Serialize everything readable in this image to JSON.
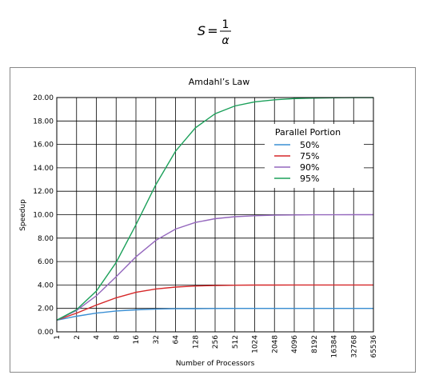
{
  "formula": {
    "lhs": "S",
    "equals": "=",
    "numerator": "1",
    "denominator": "α"
  },
  "chart_data": {
    "type": "line",
    "title": "Amdahl’s Law",
    "xlabel": "Number of Processors",
    "ylabel": "Speedup",
    "x_scale": "log2",
    "categories": [
      "1",
      "2",
      "4",
      "8",
      "16",
      "32",
      "64",
      "128",
      "256",
      "512",
      "1024",
      "2048",
      "4096",
      "8192",
      "16384",
      "32768",
      "65536"
    ],
    "x": [
      1,
      2,
      4,
      8,
      16,
      32,
      64,
      128,
      256,
      512,
      1024,
      2048,
      4096,
      8192,
      16384,
      32768,
      65536
    ],
    "ylim": [
      0,
      20
    ],
    "yticks": [
      "0.00",
      "2.00",
      "4.00",
      "6.00",
      "8.00",
      "10.00",
      "12.00",
      "14.00",
      "16.00",
      "18.00",
      "20.00"
    ],
    "ytick_values": [
      0,
      2,
      4,
      6,
      8,
      10,
      12,
      14,
      16,
      18,
      20
    ],
    "grid": true,
    "legend": {
      "title": "Parallel Portion",
      "placement": "top-right"
    },
    "series": [
      {
        "name": "50%",
        "color": "#3a8fd4",
        "values": [
          1.0,
          1.33,
          1.6,
          1.78,
          1.88,
          1.94,
          1.97,
          1.98,
          1.99,
          2.0,
          2.0,
          2.0,
          2.0,
          2.0,
          2.0,
          2.0,
          2.0
        ]
      },
      {
        "name": "75%",
        "color": "#d62728",
        "values": [
          1.0,
          1.6,
          2.29,
          2.91,
          3.37,
          3.66,
          3.82,
          3.91,
          3.95,
          3.98,
          3.99,
          3.99,
          4.0,
          4.0,
          4.0,
          4.0,
          4.0
        ]
      },
      {
        "name": "90%",
        "color": "#9467bd",
        "values": [
          1.0,
          1.82,
          3.08,
          4.71,
          6.4,
          7.8,
          8.77,
          9.34,
          9.66,
          9.83,
          9.91,
          9.96,
          9.98,
          9.99,
          9.99,
          10.0,
          10.0
        ]
      },
      {
        "name": "95%",
        "color": "#1ba05a",
        "values": [
          1.0,
          1.9,
          3.48,
          5.93,
          9.14,
          12.55,
          15.42,
          17.41,
          18.62,
          19.28,
          19.63,
          19.81,
          19.91,
          19.95,
          19.98,
          19.99,
          19.99
        ]
      }
    ]
  }
}
